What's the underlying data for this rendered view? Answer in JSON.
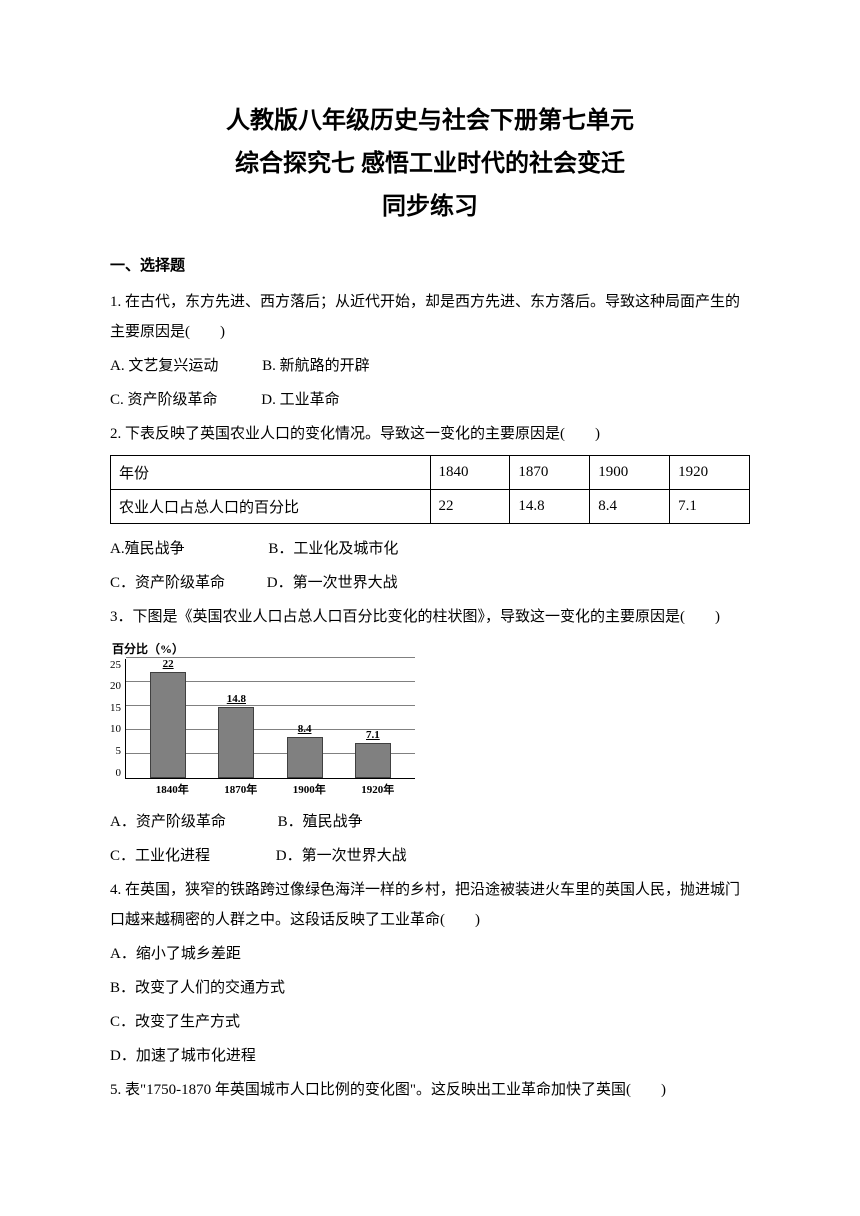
{
  "title": {
    "line1": "人教版八年级历史与社会下册第七单元",
    "line2": "综合探究七 感悟工业时代的社会变迁",
    "line3": "同步练习"
  },
  "section_heading": "一、选择题",
  "q1": {
    "text": "1. 在古代，东方先进、西方落后；从近代开始，却是西方先进、东方落后。导致这种局面产生的主要原因是(　　)",
    "optA": "A. 文艺复兴运动",
    "optB": "B. 新航路的开辟",
    "optC": "C. 资产阶级革命",
    "optD": "D. 工业革命"
  },
  "q2": {
    "text": "2. 下表反映了英国农业人口的变化情况。导致这一变化的主要原因是(　　)",
    "table": {
      "row1_label": "年份",
      "row2_label": "农业人口占总人口的百分比",
      "cols": [
        "1840",
        "1870",
        "1900",
        "1920"
      ],
      "vals": [
        "22",
        "14.8",
        "8.4",
        "7.1"
      ]
    },
    "optA": "A.殖民战争",
    "optB": "B．工业化及城市化",
    "optC": "C．资产阶级革命",
    "optD": "D．第一次世界大战"
  },
  "q3": {
    "text": "3．下图是《英国农业人口占总人口百分比变化的柱状图》，导致这一变化的主要原因是(　　)",
    "chart": {
      "type": "bar",
      "yaxis_label": "百分比（%）",
      "ylim_max": 25,
      "yticks": [
        "25",
        "20",
        "15",
        "10",
        "5",
        "0"
      ],
      "categories": [
        "1840年",
        "1870年",
        "1900年",
        "1920年"
      ],
      "values": [
        22,
        14.8,
        8.4,
        7.1
      ],
      "value_labels": [
        "22",
        "14.8",
        "8.4",
        "7.1"
      ],
      "bar_color": "#808080",
      "grid_color": "#808080",
      "background_color": "#ffffff",
      "label_fontsize": 11
    },
    "optA": "A．资产阶级革命",
    "optB": "B．殖民战争",
    "optC": "C．工业化进程",
    "optD": "D．第一次世界大战"
  },
  "q4": {
    "text": "4. 在英国，狭窄的铁路跨过像绿色海洋一样的乡村，把沿途被装进火车里的英国人民，抛进城门口越来越稠密的人群之中。这段话反映了工业革命(　　)",
    "optA": "A．缩小了城乡差距",
    "optB": "B．改变了人们的交通方式",
    "optC": "C．改变了生产方式",
    "optD": "D．加速了城市化进程"
  },
  "q5": {
    "text": "5. 表\"1750‐1870 年英国城市人口比例的变化图\"。这反映出工业革命加快了英国(　　)"
  }
}
